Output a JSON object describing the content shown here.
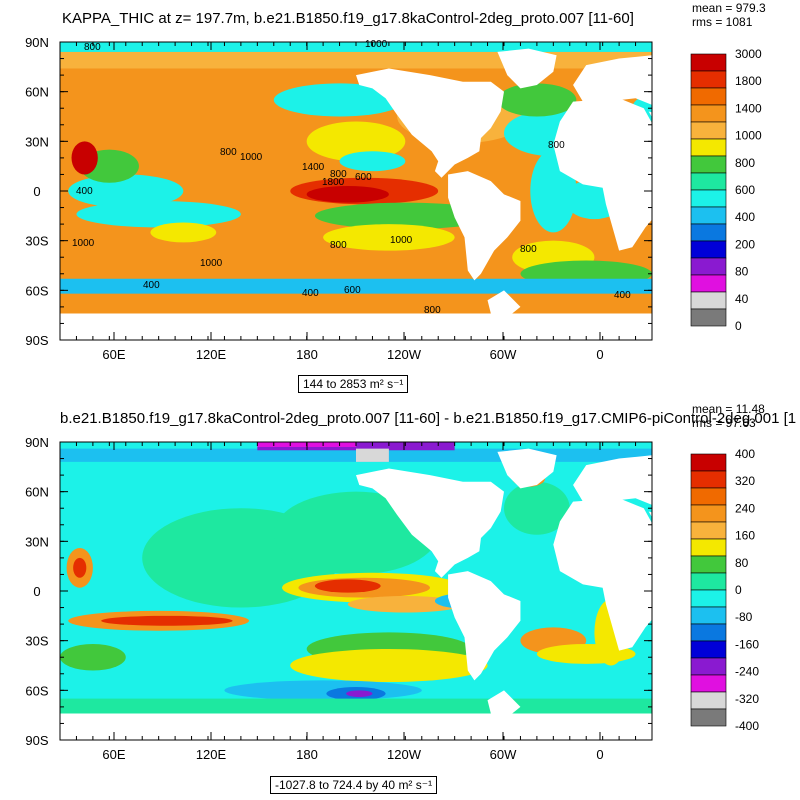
{
  "chart_data": [
    {
      "type": "heatmap",
      "title": "KAPPA_THIC at z= 197.7m, b.e21.B1850.f19_g17.8kaControl-2deg_proto.007 [11-60]",
      "variable": "KAPPA_THIC",
      "stats": {
        "mean": "mean = 979.3",
        "rms": "rms = 1081"
      },
      "range_label": "144 to 2853",
      "units_label": "m² s⁻¹",
      "x_ticks": [
        "60E",
        "120E",
        "180",
        "120W",
        "60W",
        "0"
      ],
      "y_ticks": [
        "90N",
        "60N",
        "30N",
        "0",
        "30S",
        "60S",
        "90S"
      ],
      "colorbar": {
        "labels": [
          "3000",
          "1800",
          "1400",
          "1000",
          "800",
          "600",
          "400",
          "200",
          "80",
          "40",
          "0"
        ],
        "colors": [
          "#c80000",
          "#e52e00",
          "#f06a00",
          "#f4941c",
          "#f8b23c",
          "#f4e800",
          "#42c83c",
          "#1ee8a0",
          "#1cf2e8",
          "#1cc0f0",
          "#0a78e0",
          "#0000d8",
          "#8a1ad0",
          "#e010e0",
          "#d8d8d8",
          "#7a7a7a"
        ]
      },
      "contour_labels": [
        "1000",
        "800",
        "1000",
        "1400",
        "1800",
        "800",
        "600",
        "400",
        "800",
        "1000",
        "800",
        "1000",
        "1000",
        "400",
        "600",
        "800",
        "800",
        "400",
        "400",
        "800"
      ]
    },
    {
      "type": "heatmap",
      "title": "b.e21.B1850.f19_g17.8kaControl-2deg_proto.007 [11-60] - b.e21.B1850.f19_g17.CMIP6-piControl-2deg.001 [1",
      "stats": {
        "mean": "mean = 11.48",
        "rms": "rms = 97.63"
      },
      "range_label": "-1027.8 to 724.4 by 40",
      "units_label": "m² s⁻¹",
      "x_ticks": [
        "60E",
        "120E",
        "180",
        "120W",
        "60W",
        "0"
      ],
      "y_ticks": [
        "90N",
        "60N",
        "30N",
        "0",
        "30S",
        "60S",
        "90S"
      ],
      "colorbar": {
        "labels": [
          "400",
          "320",
          "240",
          "160",
          "80",
          "0",
          "-80",
          "-160",
          "-240",
          "-320",
          "-400"
        ],
        "colors": [
          "#c80000",
          "#e52e00",
          "#f06a00",
          "#f4941c",
          "#f8b23c",
          "#f4e800",
          "#42c83c",
          "#1ee8a0",
          "#1cf2e8",
          "#1cc0f0",
          "#0a78e0",
          "#0000d8",
          "#8a1ad0",
          "#e010e0",
          "#d8d8d8",
          "#7a7a7a"
        ]
      }
    }
  ]
}
